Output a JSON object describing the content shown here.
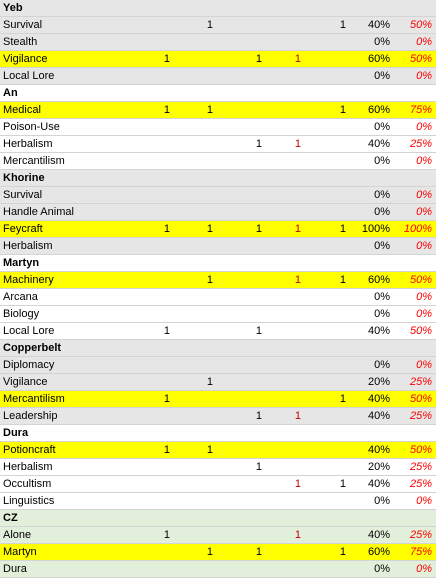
{
  "rows": [
    {
      "type": "header",
      "label": "Yeb",
      "bg": "gray"
    },
    {
      "type": "skill",
      "label": "Survival",
      "bg": "gray",
      "c1": "",
      "c2": "1",
      "c3": "",
      "c4": "",
      "c5": "1",
      "pct": "40%",
      "pct2": "50%"
    },
    {
      "type": "skill",
      "label": "Stealth",
      "bg": "gray",
      "c1": "",
      "c2": "",
      "c3": "",
      "c4": "",
      "c5": "",
      "pct": "0%",
      "pct2": "0%"
    },
    {
      "type": "skill",
      "label": "Vigilance",
      "bg": "yellow",
      "c1": "1",
      "c2": "",
      "c3": "1",
      "c4": "1",
      "c5": "",
      "pct": "60%",
      "pct2": "50%"
    },
    {
      "type": "skill",
      "label": "Local Lore",
      "bg": "gray",
      "c1": "",
      "c2": "",
      "c3": "",
      "c4": "",
      "c5": "",
      "pct": "0%",
      "pct2": "0%"
    },
    {
      "type": "header",
      "label": "An",
      "bg": "white"
    },
    {
      "type": "skill",
      "label": "Medical",
      "bg": "yellow",
      "c1": "1",
      "c2": "1",
      "c3": "",
      "c4": "",
      "c5": "1",
      "pct": "60%",
      "pct2": "75%"
    },
    {
      "type": "skill",
      "label": "Poison-Use",
      "bg": "white",
      "c1": "",
      "c2": "",
      "c3": "",
      "c4": "",
      "c5": "",
      "pct": "0%",
      "pct2": "0%"
    },
    {
      "type": "skill",
      "label": "Herbalism",
      "bg": "white",
      "c1": "",
      "c2": "",
      "c3": "1",
      "c4": "1",
      "c5": "",
      "pct": "40%",
      "pct2": "25%"
    },
    {
      "type": "skill",
      "label": "Mercantilism",
      "bg": "white",
      "c1": "",
      "c2": "",
      "c3": "",
      "c4": "",
      "c5": "",
      "pct": "0%",
      "pct2": "0%"
    },
    {
      "type": "header",
      "label": "Khorine",
      "bg": "gray"
    },
    {
      "type": "skill",
      "label": "Survival",
      "bg": "gray",
      "c1": "",
      "c2": "",
      "c3": "",
      "c4": "",
      "c5": "",
      "pct": "0%",
      "pct2": "0%"
    },
    {
      "type": "skill",
      "label": "Handle Animal",
      "bg": "gray",
      "c1": "",
      "c2": "",
      "c3": "",
      "c4": "",
      "c5": "",
      "pct": "0%",
      "pct2": "0%"
    },
    {
      "type": "skill",
      "label": "Feycraft",
      "bg": "yellow",
      "c1": "1",
      "c2": "1",
      "c3": "1",
      "c4": "1",
      "c5": "1",
      "pct": "100%",
      "pct2": "100%"
    },
    {
      "type": "skill",
      "label": "Herbalism",
      "bg": "gray",
      "c1": "",
      "c2": "",
      "c3": "",
      "c4": "",
      "c5": "",
      "pct": "0%",
      "pct2": "0%"
    },
    {
      "type": "header",
      "label": "Martyn",
      "bg": "white"
    },
    {
      "type": "skill",
      "label": "Machinery",
      "bg": "yellow",
      "c1": "",
      "c2": "1",
      "c3": "",
      "c4": "1",
      "c5": "1",
      "pct": "60%",
      "pct2": "50%"
    },
    {
      "type": "skill",
      "label": "Arcana",
      "bg": "white",
      "c1": "",
      "c2": "",
      "c3": "",
      "c4": "",
      "c5": "",
      "pct": "0%",
      "pct2": "0%"
    },
    {
      "type": "skill",
      "label": "Biology",
      "bg": "white",
      "c1": "",
      "c2": "",
      "c3": "",
      "c4": "",
      "c5": "",
      "pct": "0%",
      "pct2": "0%"
    },
    {
      "type": "skill",
      "label": "Local Lore",
      "bg": "white",
      "c1": "1",
      "c2": "",
      "c3": "1",
      "c4": "",
      "c5": "",
      "pct": "40%",
      "pct2": "50%"
    },
    {
      "type": "header",
      "label": "Copperbelt",
      "bg": "gray"
    },
    {
      "type": "skill",
      "label": "Diplomacy",
      "bg": "gray",
      "c1": "",
      "c2": "",
      "c3": "",
      "c4": "",
      "c5": "",
      "pct": "0%",
      "pct2": "0%"
    },
    {
      "type": "skill",
      "label": "Vigilance",
      "bg": "gray",
      "c1": "",
      "c2": "1",
      "c3": "",
      "c4": "",
      "c5": "",
      "pct": "20%",
      "pct2": "25%"
    },
    {
      "type": "skill",
      "label": "Mercantilism",
      "bg": "yellow",
      "c1": "1",
      "c2": "",
      "c3": "",
      "c4": "",
      "c5": "1",
      "pct": "40%",
      "pct2": "50%"
    },
    {
      "type": "skill",
      "label": "Leadership",
      "bg": "gray",
      "c1": "",
      "c2": "",
      "c3": "1",
      "c4": "1",
      "c5": "",
      "pct": "40%",
      "pct2": "25%"
    },
    {
      "type": "header",
      "label": "Dura",
      "bg": "white"
    },
    {
      "type": "skill",
      "label": "Potioncraft",
      "bg": "yellow",
      "c1": "1",
      "c2": "1",
      "c3": "",
      "c4": "",
      "c5": "",
      "pct": "40%",
      "pct2": "50%"
    },
    {
      "type": "skill",
      "label": "Herbalism",
      "bg": "white",
      "c1": "",
      "c2": "",
      "c3": "1",
      "c4": "",
      "c5": "",
      "pct": "20%",
      "pct2": "25%"
    },
    {
      "type": "skill",
      "label": "Occultism",
      "bg": "white",
      "c1": "",
      "c2": "",
      "c3": "",
      "c4": "1",
      "c5": "1",
      "pct": "40%",
      "pct2": "25%"
    },
    {
      "type": "skill",
      "label": "Linguistics",
      "bg": "white",
      "c1": "",
      "c2": "",
      "c3": "",
      "c4": "",
      "c5": "",
      "pct": "0%",
      "pct2": "0%"
    },
    {
      "type": "header",
      "label": "CZ",
      "bg": "green"
    },
    {
      "type": "skill",
      "label": "Alone",
      "bg": "green",
      "c1": "1",
      "c2": "",
      "c3": "",
      "c4": "1",
      "c5": "",
      "pct": "40%",
      "pct2": "25%"
    },
    {
      "type": "skill",
      "label": "Martyn",
      "bg": "yellow",
      "c1": "",
      "c2": "1",
      "c3": "1",
      "c4": "",
      "c5": "1",
      "pct": "60%",
      "pct2": "75%"
    },
    {
      "type": "skill",
      "label": "Dura",
      "bg": "green",
      "c1": "",
      "c2": "",
      "c3": "",
      "c4": "",
      "c5": "",
      "pct": "0%",
      "pct2": "0%"
    }
  ]
}
